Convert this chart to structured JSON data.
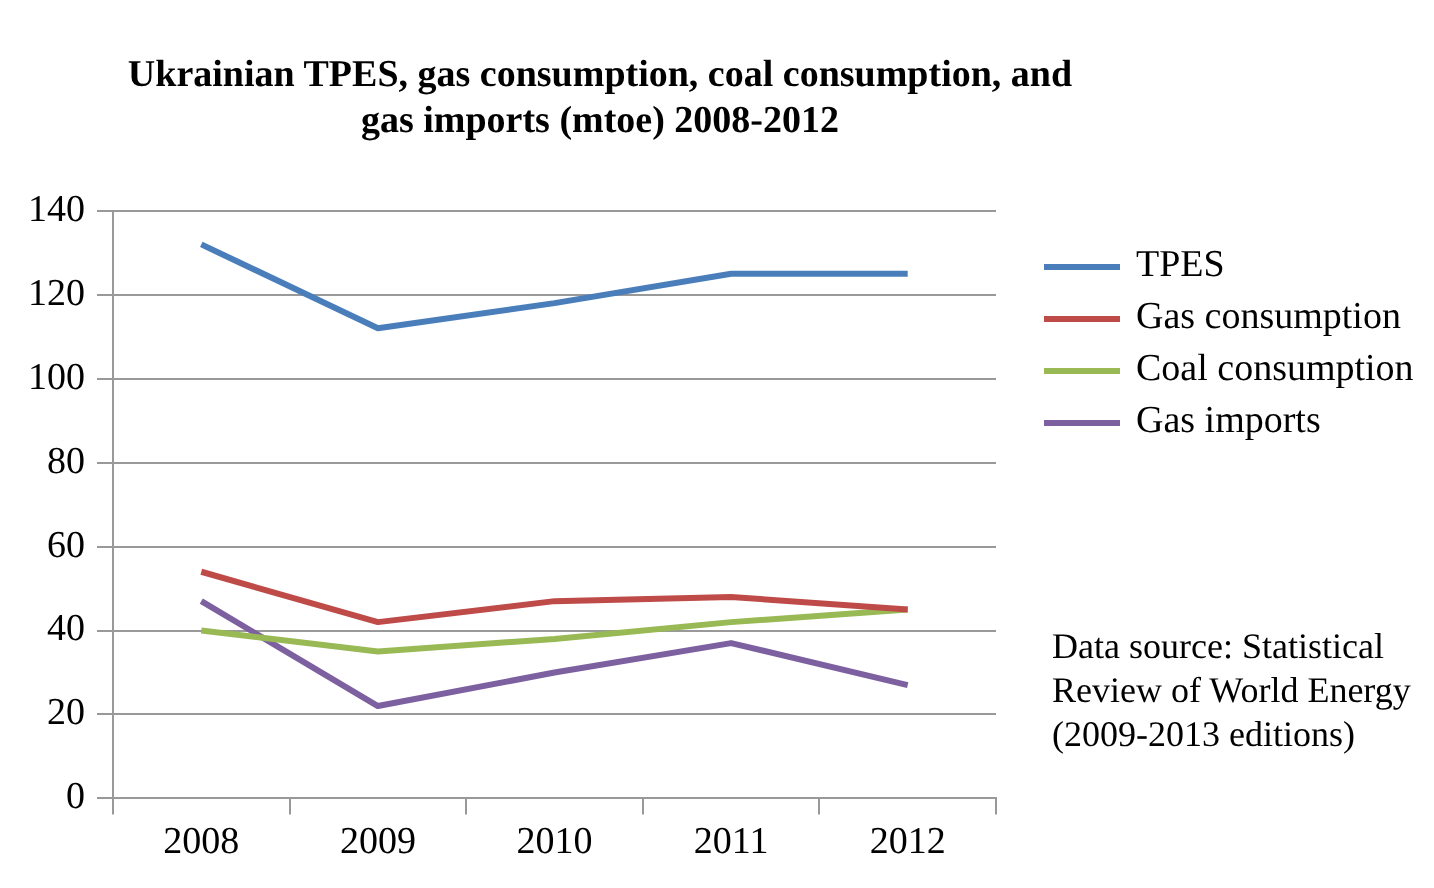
{
  "chart_data": {
    "type": "line",
    "title": "Ukrainian TPES, gas consumption, coal consumption, and gas imports (mtoe) 2008-2012",
    "categories": [
      "2008",
      "2009",
      "2010",
      "2011",
      "2012"
    ],
    "series": [
      {
        "name": "TPES",
        "color": "#4a7ebb",
        "values": [
          132,
          112,
          118,
          125,
          125
        ]
      },
      {
        "name": "Gas consumption",
        "color": "#be4b48",
        "values": [
          54,
          42,
          47,
          48,
          45
        ]
      },
      {
        "name": "Coal consumption",
        "color": "#98b954",
        "values": [
          40,
          35,
          38,
          42,
          45
        ]
      },
      {
        "name": "Gas imports",
        "color": "#7d60a0",
        "values": [
          47,
          22,
          30,
          37,
          27
        ]
      }
    ],
    "ylim": [
      0,
      140
    ],
    "yticks": [
      0,
      20,
      40,
      60,
      80,
      100,
      120,
      140
    ],
    "grid": "y",
    "legend": "right",
    "marker": "none",
    "annotations": [
      "Data source: Statistical Review of World Energy (2009-2013 editions)"
    ]
  }
}
